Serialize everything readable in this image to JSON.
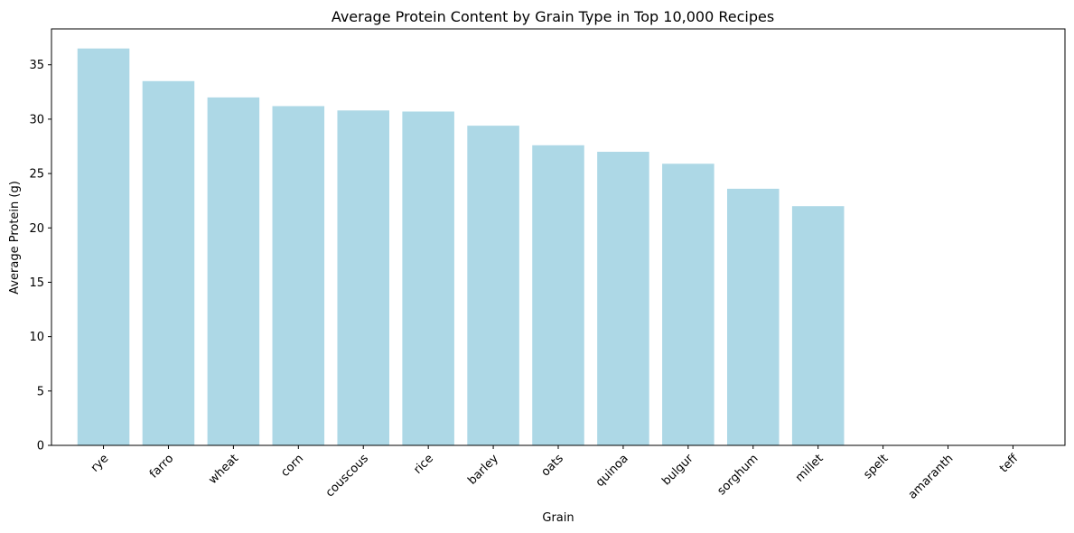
{
  "chart_data": {
    "type": "bar",
    "title": "Average Protein Content by Grain Type in Top 10,000 Recipes",
    "xlabel": "Grain",
    "ylabel": "Average Protein (g)",
    "categories": [
      "rye",
      "farro",
      "wheat",
      "corn",
      "couscous",
      "rice",
      "barley",
      "oats",
      "quinoa",
      "bulgur",
      "sorghum",
      "millet",
      "spelt",
      "amaranth",
      "teff"
    ],
    "values": [
      36.5,
      33.5,
      32.0,
      31.2,
      30.8,
      30.7,
      29.4,
      27.6,
      27.0,
      25.9,
      23.6,
      22.0,
      0,
      0,
      0
    ],
    "ylim": [
      0,
      38.3
    ],
    "yticks": [
      0,
      5,
      10,
      15,
      20,
      25,
      30,
      35
    ],
    "grid": false,
    "bar_color": "#add8e6"
  }
}
